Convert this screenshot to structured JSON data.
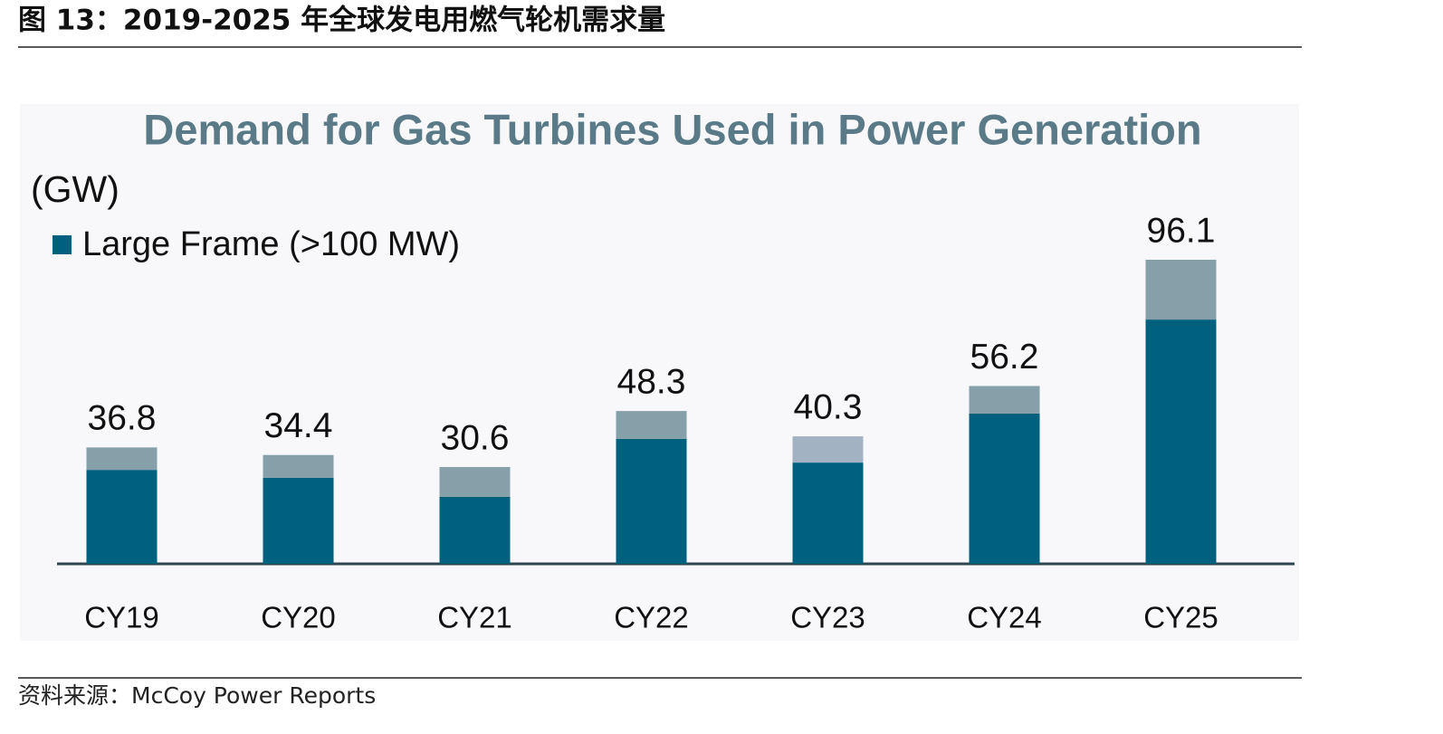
{
  "title": "图 13：2019-2025 年全球发电用燃气轮机需求量",
  "source": "资料来源：McCoy Power Reports",
  "chart_data": {
    "type": "stacked-bar",
    "title": "Demand for Gas Turbines Used in Power Generation",
    "unit_label": "(GW)",
    "categories": [
      "CY19",
      "CY20",
      "CY21",
      "CY22",
      "CY23",
      "CY24",
      "CY25"
    ],
    "series": [
      {
        "name": "Large Frame (>100 MW)",
        "color": "#00617f",
        "values": [
          29.7,
          27.2,
          21.2,
          39.5,
          32.0,
          47.5,
          77.2
        ]
      },
      {
        "color": "#86a0aa",
        "colors": [
          "#86a0aa",
          "#86a0aa",
          "#86a0aa",
          "#86a0aa",
          "#a3b2c2",
          "#86a0aa",
          "#86a0aa"
        ],
        "values": [
          7.1,
          7.2,
          9.4,
          8.8,
          8.3,
          8.7,
          18.9
        ]
      }
    ],
    "totals": [
      36.8,
      34.4,
      30.6,
      48.3,
      40.3,
      56.2,
      96.1
    ]
  }
}
